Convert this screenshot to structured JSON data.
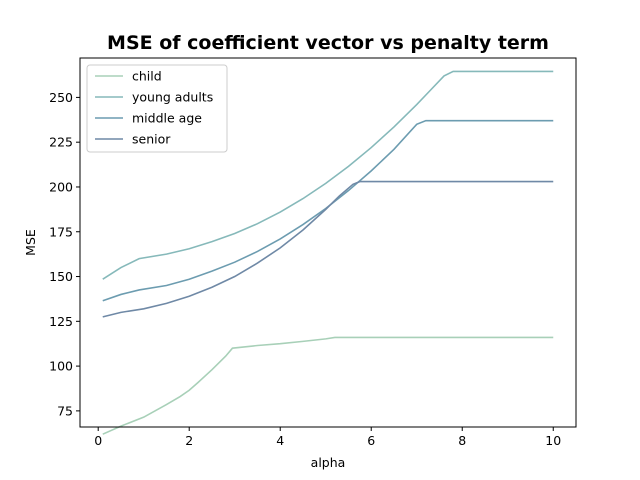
{
  "chart_data": {
    "type": "line",
    "title": "MSE of coefficient vector vs penalty term",
    "xlabel": "alpha",
    "ylabel": "MSE",
    "xlim": [
      -0.4,
      10.5
    ],
    "ylim": [
      66,
      272
    ],
    "xticks": [
      0,
      2,
      4,
      6,
      8,
      10
    ],
    "yticks": [
      75,
      100,
      125,
      150,
      175,
      200,
      225,
      250
    ],
    "grid": false,
    "legend_position": "upper-left",
    "series": [
      {
        "name": "child",
        "color": "#a8d0b8",
        "x": [
          0.1,
          0.5,
          1.0,
          1.5,
          1.8,
          2.0,
          2.2,
          2.5,
          2.8,
          2.95,
          3.5,
          4.0,
          4.5,
          5.0,
          5.2,
          6.0,
          7.0,
          8.0,
          9.0,
          10.0
        ],
        "y": [
          62,
          66.5,
          71.5,
          78.5,
          83,
          86.5,
          91,
          98,
          105.5,
          110,
          111.5,
          112.5,
          113.8,
          115.2,
          116,
          116,
          116,
          116,
          116,
          116
        ]
      },
      {
        "name": "young adults",
        "color": "#86b9ba",
        "x": [
          0.1,
          0.5,
          0.9,
          1.5,
          2.0,
          2.5,
          3.0,
          3.5,
          4.0,
          4.5,
          5.0,
          5.5,
          6.0,
          6.5,
          7.0,
          7.3,
          7.6,
          7.8,
          8.0,
          8.5,
          9.0,
          9.5,
          10.0
        ],
        "y": [
          148.5,
          155,
          160,
          162.5,
          165.5,
          169.5,
          174,
          179.5,
          186,
          193.5,
          202,
          211.5,
          222,
          233.5,
          246,
          254,
          262,
          264.5,
          264.5,
          264.5,
          264.5,
          264.5,
          264.5
        ]
      },
      {
        "name": "middle age",
        "color": "#6c9cb0",
        "x": [
          0.1,
          0.5,
          0.9,
          1.5,
          2.0,
          2.5,
          3.0,
          3.5,
          4.0,
          4.5,
          5.0,
          5.5,
          6.0,
          6.5,
          7.0,
          7.2,
          7.5,
          8.0,
          9.0,
          10.0
        ],
        "y": [
          136.5,
          140,
          142.5,
          145,
          148.5,
          153,
          158,
          164,
          171,
          179,
          188,
          198,
          209,
          221,
          235,
          237,
          237,
          237,
          237,
          237
        ]
      },
      {
        "name": "senior",
        "color": "#6f89a6",
        "x": [
          0.1,
          0.5,
          1.0,
          1.5,
          2.0,
          2.5,
          3.0,
          3.5,
          4.0,
          4.5,
          5.0,
          5.3,
          5.6,
          5.75,
          6.0,
          7.0,
          8.0,
          9.0,
          10.0
        ],
        "y": [
          127.5,
          130,
          132,
          135,
          139,
          144,
          150,
          157.5,
          166,
          176,
          187.5,
          195,
          201.5,
          203,
          203,
          203,
          203,
          203,
          203
        ]
      }
    ]
  }
}
